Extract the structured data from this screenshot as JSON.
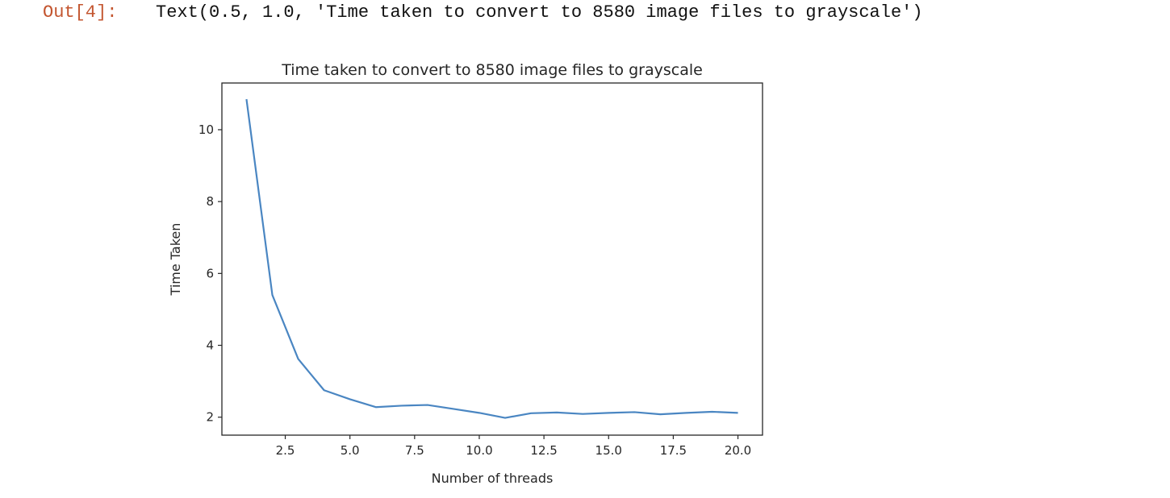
{
  "output": {
    "prompt": "Out[4]:",
    "text": "Text(0.5, 1.0, 'Time taken to convert to 8580 image files to grayscale')"
  },
  "chart_data": {
    "type": "line",
    "title": "Time taken to convert to 8580 image files to grayscale",
    "xlabel": "Number of threads",
    "ylabel": "Time Taken",
    "x": [
      1,
      2,
      3,
      4,
      5,
      6,
      7,
      8,
      9,
      10,
      11,
      12,
      13,
      14,
      15,
      16,
      17,
      18,
      19,
      20
    ],
    "series": [
      {
        "values": [
          10.85,
          5.4,
          3.62,
          2.75,
          2.5,
          2.28,
          2.32,
          2.34,
          2.23,
          2.12,
          1.98,
          2.11,
          2.13,
          2.09,
          2.12,
          2.14,
          2.08,
          2.12,
          2.15,
          2.12
        ],
        "color": "#4a86c2"
      }
    ],
    "xlim": [
      0.05,
      20.95
    ],
    "ylim": [
      1.5,
      11.3
    ],
    "xticks": [
      2.5,
      5.0,
      7.5,
      10.0,
      12.5,
      15.0,
      17.5,
      20.0
    ],
    "xtick_labels": [
      "2.5",
      "5.0",
      "7.5",
      "10.0",
      "12.5",
      "15.0",
      "17.5",
      "20.0"
    ],
    "yticks": [
      2,
      4,
      6,
      8,
      10
    ],
    "ytick_labels": [
      "2",
      "4",
      "6",
      "8",
      "10"
    ],
    "grid": false,
    "legend": "none"
  }
}
